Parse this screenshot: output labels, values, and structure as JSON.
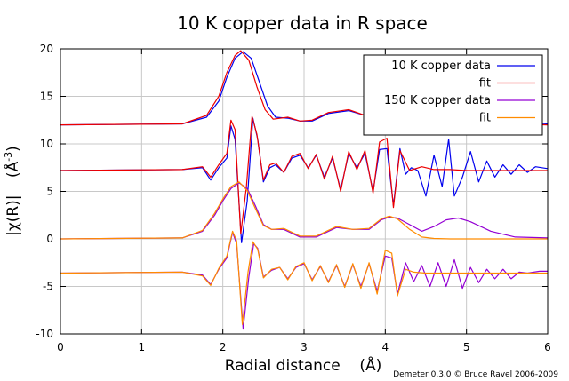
{
  "chart_data": {
    "type": "line",
    "title": "10 K copper data in R space",
    "xlabel": "Radial distance    (Å)",
    "ylabel_prefix": "|χ(R)|",
    "ylabel_unit": "(Å",
    "ylabel_exp": "-3",
    "ylabel_close": ")",
    "xlim": [
      0,
      6
    ],
    "ylim": [
      -10,
      20
    ],
    "xticks": [
      0,
      1,
      2,
      3,
      4,
      5,
      6
    ],
    "yticks": [
      -10,
      -5,
      0,
      5,
      10,
      15,
      20
    ],
    "grid": true,
    "legend_position": "top-right",
    "credit": "Demeter 0.3.0 © Bruce Ravel 2006-2009",
    "series": [
      {
        "name": "10 K copper data",
        "color": "#0000ee",
        "group": "magnitude-10K",
        "x": [
          0,
          1.5,
          1.8,
          1.95,
          2.05,
          2.15,
          2.25,
          2.35,
          2.45,
          2.55,
          2.65,
          2.8,
          2.95,
          3.1,
          3.3,
          3.55,
          3.75,
          3.9,
          4.0,
          4.1,
          4.2,
          4.4,
          4.6,
          4.75,
          4.9,
          5.1,
          5.3,
          5.5,
          5.7,
          6.0
        ],
        "y": [
          12,
          12.1,
          12.8,
          14.5,
          17.0,
          19.0,
          19.7,
          19.0,
          16.5,
          14.0,
          12.8,
          12.7,
          12.4,
          12.4,
          13.2,
          13.5,
          13.0,
          12.6,
          13.5,
          14.7,
          15.2,
          14.6,
          15.2,
          15.2,
          14.3,
          13.0,
          12.9,
          12.6,
          12.3,
          12.1
        ]
      },
      {
        "name": "fit",
        "color": "#ee0000",
        "group": "magnitude-10K",
        "x": [
          0,
          1.5,
          1.8,
          1.95,
          2.05,
          2.15,
          2.22,
          2.32,
          2.42,
          2.52,
          2.62,
          2.8,
          2.95,
          3.1,
          3.3,
          3.55,
          3.75,
          3.9,
          4.0,
          4.1,
          4.25,
          4.5,
          4.8,
          5.0,
          5.5,
          6.0
        ],
        "y": [
          12,
          12.1,
          13.0,
          15.0,
          17.5,
          19.3,
          19.8,
          18.8,
          16.0,
          13.6,
          12.6,
          12.8,
          12.4,
          12.5,
          13.3,
          13.6,
          13.0,
          12.7,
          14.0,
          15.6,
          15.0,
          13.5,
          12.4,
          12.2,
          12.1,
          12.0
        ]
      },
      {
        "name": "",
        "color": "#0000ee",
        "group": "real-10K",
        "x": [
          0,
          1.5,
          1.75,
          1.85,
          1.95,
          2.05,
          2.1,
          2.15,
          2.23,
          2.3,
          2.37,
          2.43,
          2.5,
          2.58,
          2.65,
          2.75,
          2.85,
          2.95,
          3.05,
          3.15,
          3.25,
          3.35,
          3.45,
          3.55,
          3.65,
          3.75,
          3.85,
          3.93,
          4.02,
          4.1,
          4.18,
          4.25,
          4.32,
          4.4,
          4.5,
          4.6,
          4.7,
          4.78,
          4.85,
          4.95,
          5.05,
          5.15,
          5.25,
          5.35,
          5.45,
          5.55,
          5.65,
          5.75,
          5.85,
          6.0
        ],
        "y": [
          7.2,
          7.3,
          7.5,
          6.2,
          7.5,
          8.5,
          11.9,
          10.5,
          -0.4,
          4.0,
          12.7,
          10.5,
          6.0,
          7.5,
          7.8,
          7.0,
          8.5,
          8.8,
          7.5,
          8.8,
          6.5,
          8.5,
          5.2,
          9.0,
          7.5,
          9.0,
          5.0,
          9.4,
          9.5,
          3.5,
          9.5,
          6.8,
          7.5,
          7.2,
          4.5,
          8.8,
          5.5,
          10.5,
          4.5,
          6.5,
          9.2,
          6.0,
          8.2,
          6.5,
          7.8,
          6.8,
          7.8,
          7.0,
          7.6,
          7.4
        ]
      },
      {
        "name": "",
        "color": "#ee0000",
        "group": "real-10K",
        "x": [
          0,
          1.5,
          1.75,
          1.85,
          1.95,
          2.05,
          2.1,
          2.15,
          2.22,
          2.29,
          2.36,
          2.42,
          2.5,
          2.58,
          2.65,
          2.75,
          2.85,
          2.95,
          3.05,
          3.15,
          3.25,
          3.35,
          3.45,
          3.55,
          3.65,
          3.75,
          3.85,
          3.93,
          4.02,
          4.1,
          4.18,
          4.3,
          4.45,
          4.6,
          4.8,
          5.0,
          5.5,
          6.0
        ],
        "y": [
          7.2,
          7.3,
          7.6,
          6.5,
          7.8,
          9.0,
          12.5,
          11.5,
          0.5,
          5.5,
          12.9,
          11.0,
          6.2,
          7.8,
          8.0,
          7.0,
          8.7,
          9.0,
          7.4,
          8.9,
          6.3,
          8.7,
          5.0,
          9.2,
          7.3,
          9.3,
          4.8,
          10.2,
          10.6,
          3.3,
          9.3,
          7.2,
          7.6,
          7.3,
          7.3,
          7.2,
          7.2,
          7.2
        ]
      },
      {
        "name": "150 K copper data",
        "color": "#9400d3",
        "group": "magnitude-150K",
        "x": [
          0,
          1.5,
          1.75,
          1.9,
          2.0,
          2.1,
          2.2,
          2.3,
          2.4,
          2.5,
          2.6,
          2.75,
          2.95,
          3.15,
          3.4,
          3.6,
          3.8,
          3.95,
          4.05,
          4.15,
          4.3,
          4.45,
          4.6,
          4.75,
          4.9,
          5.05,
          5.3,
          5.6,
          6.0
        ],
        "y": [
          0,
          0.1,
          0.8,
          2.5,
          4.0,
          5.3,
          5.9,
          5.3,
          3.5,
          1.5,
          1.0,
          1.0,
          0.2,
          0.2,
          1.2,
          1.0,
          1.0,
          2.0,
          2.3,
          2.2,
          1.5,
          0.8,
          1.3,
          2.0,
          2.2,
          1.8,
          0.8,
          0.2,
          0.1
        ]
      },
      {
        "name": "fit",
        "color": "#ff8c00",
        "group": "magnitude-150K",
        "x": [
          0,
          1.5,
          1.75,
          1.9,
          2.0,
          2.1,
          2.2,
          2.3,
          2.4,
          2.5,
          2.6,
          2.75,
          2.95,
          3.15,
          3.4,
          3.6,
          3.8,
          3.95,
          4.05,
          4.15,
          4.3,
          4.45,
          4.6,
          4.8,
          5.0,
          6.0
        ],
        "y": [
          0,
          0.1,
          0.9,
          2.7,
          4.2,
          5.5,
          6.0,
          5.1,
          3.2,
          1.4,
          1.0,
          1.1,
          0.3,
          0.3,
          1.3,
          1.0,
          1.1,
          2.1,
          2.4,
          2.1,
          1.0,
          0.2,
          0.05,
          0.0,
          0.0,
          0.0
        ]
      },
      {
        "name": "",
        "color": "#9400d3",
        "group": "real-150K",
        "x": [
          0,
          1.5,
          1.75,
          1.85,
          1.95,
          2.05,
          2.12,
          2.17,
          2.25,
          2.32,
          2.38,
          2.43,
          2.5,
          2.6,
          2.7,
          2.8,
          2.9,
          3.0,
          3.1,
          3.2,
          3.3,
          3.4,
          3.5,
          3.6,
          3.7,
          3.8,
          3.9,
          4.0,
          4.08,
          4.15,
          4.25,
          4.35,
          4.45,
          4.55,
          4.65,
          4.75,
          4.85,
          4.95,
          5.05,
          5.15,
          5.25,
          5.35,
          5.45,
          5.55,
          5.65,
          5.75,
          5.9,
          6.0
        ],
        "y": [
          -3.6,
          -3.5,
          -3.8,
          -4.8,
          -3.2,
          -2.0,
          0.7,
          -0.5,
          -9.5,
          -4.0,
          -0.5,
          -1.0,
          -4.0,
          -3.3,
          -3.0,
          -4.2,
          -3.0,
          -2.6,
          -4.3,
          -2.9,
          -4.5,
          -2.8,
          -5.0,
          -2.7,
          -5.0,
          -2.6,
          -5.5,
          -1.8,
          -2.0,
          -5.8,
          -2.5,
          -4.5,
          -2.8,
          -5.0,
          -2.5,
          -5.0,
          -2.2,
          -5.2,
          -3.0,
          -4.6,
          -3.2,
          -4.2,
          -3.2,
          -4.2,
          -3.5,
          -3.6,
          -3.4,
          -3.4
        ]
      },
      {
        "name": "",
        "color": "#ff8c00",
        "group": "real-150K",
        "x": [
          0,
          1.5,
          1.75,
          1.85,
          1.95,
          2.05,
          2.12,
          2.17,
          2.24,
          2.31,
          2.37,
          2.43,
          2.5,
          2.6,
          2.7,
          2.8,
          2.9,
          3.0,
          3.1,
          3.2,
          3.3,
          3.4,
          3.5,
          3.6,
          3.7,
          3.8,
          3.9,
          4.0,
          4.08,
          4.15,
          4.25,
          4.35,
          4.5,
          4.7,
          5.0,
          5.5,
          6.0
        ],
        "y": [
          -3.6,
          -3.5,
          -3.9,
          -4.9,
          -3.1,
          -1.8,
          0.8,
          -0.2,
          -9.0,
          -3.5,
          -0.3,
          -1.1,
          -4.1,
          -3.2,
          -3.0,
          -4.3,
          -2.9,
          -2.5,
          -4.4,
          -2.8,
          -4.6,
          -2.7,
          -5.1,
          -2.6,
          -5.2,
          -2.5,
          -5.8,
          -1.2,
          -1.5,
          -6.0,
          -3.2,
          -3.5,
          -3.6,
          -3.6,
          -3.6,
          -3.6,
          -3.6
        ]
      }
    ]
  }
}
